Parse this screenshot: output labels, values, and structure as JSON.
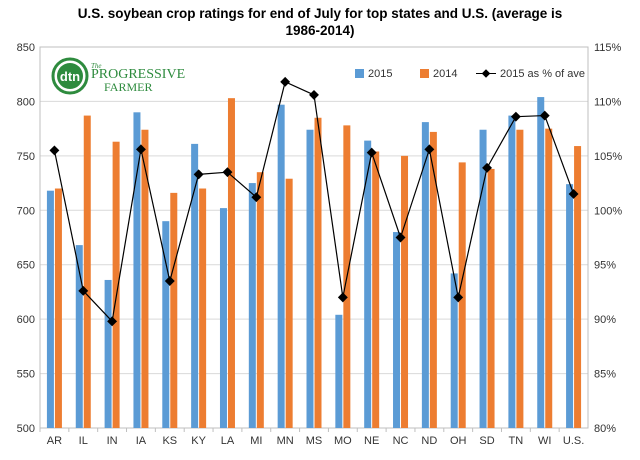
{
  "title_lines": [
    "U.S. soybean crop ratings for end of July for top states and U.S. (average is",
    "1986-2014)"
  ],
  "logo": {
    "badge": "dtn",
    "line1": "PROGRESSIVE",
    "line2": "FARMER",
    "prefix": "The"
  },
  "colors": {
    "s2015": "#5b9bd5",
    "s2014": "#ed7d31",
    "line": "#000000",
    "grid": "#d9d9d9"
  },
  "chart_data": {
    "type": "bar",
    "categories": [
      "AR",
      "IL",
      "IN",
      "IA",
      "KS",
      "KY",
      "LA",
      "MI",
      "MN",
      "MS",
      "MO",
      "NE",
      "NC",
      "ND",
      "OH",
      "SD",
      "TN",
      "WI",
      "U.S."
    ],
    "series": [
      {
        "name": "2015",
        "axis": "left",
        "kind": "bar",
        "values": [
          718,
          668,
          636,
          790,
          690,
          761,
          702,
          725,
          797,
          774,
          604,
          764,
          680,
          781,
          642,
          774,
          787,
          804,
          724
        ]
      },
      {
        "name": "2014",
        "axis": "left",
        "kind": "bar",
        "values": [
          720,
          787,
          763,
          774,
          716,
          720,
          803,
          735,
          729,
          785,
          778,
          754,
          750,
          772,
          744,
          738,
          774,
          775,
          759
        ]
      },
      {
        "name": "2015 as % of ave",
        "axis": "right",
        "kind": "line",
        "marker": "diamond",
        "values": [
          105.5,
          92.6,
          89.8,
          105.6,
          93.5,
          103.3,
          103.5,
          101.2,
          111.8,
          110.6,
          92.0,
          105.3,
          97.5,
          105.6,
          92.0,
          103.9,
          108.6,
          108.7,
          101.5
        ]
      }
    ],
    "ylim": [
      500,
      850
    ],
    "yticks": [
      500,
      550,
      600,
      650,
      700,
      750,
      800,
      850
    ],
    "y2lim": [
      80,
      115
    ],
    "y2ticks": [
      "80%",
      "85%",
      "90%",
      "95%",
      "100%",
      "105%",
      "110%",
      "115%"
    ],
    "legend_position": "top-right",
    "grid": true
  }
}
